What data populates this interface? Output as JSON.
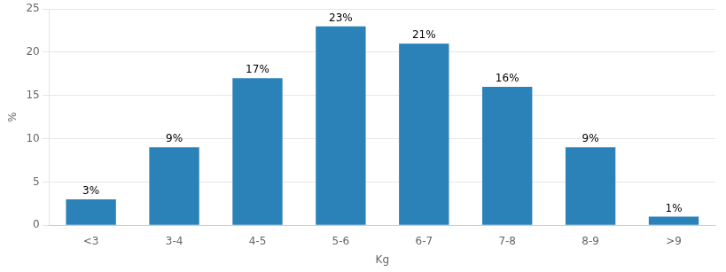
{
  "chart_data": {
    "type": "bar",
    "categories": [
      "<3",
      "3-4",
      "4-5",
      "5-6",
      "6-7",
      "7-8",
      "8-9",
      ">9"
    ],
    "values": [
      3,
      9,
      17,
      23,
      21,
      16,
      9,
      1
    ],
    "value_labels": [
      "3%",
      "9%",
      "17%",
      "23%",
      "21%",
      "16%",
      "9%",
      "1%"
    ],
    "data_labels": true,
    "color": "#2b82b8",
    "xlabel": "Kg",
    "ylabel": "%",
    "ylim": [
      0,
      25
    ],
    "yticks": [
      0,
      5,
      10,
      15,
      20,
      25
    ],
    "grid": true
  }
}
